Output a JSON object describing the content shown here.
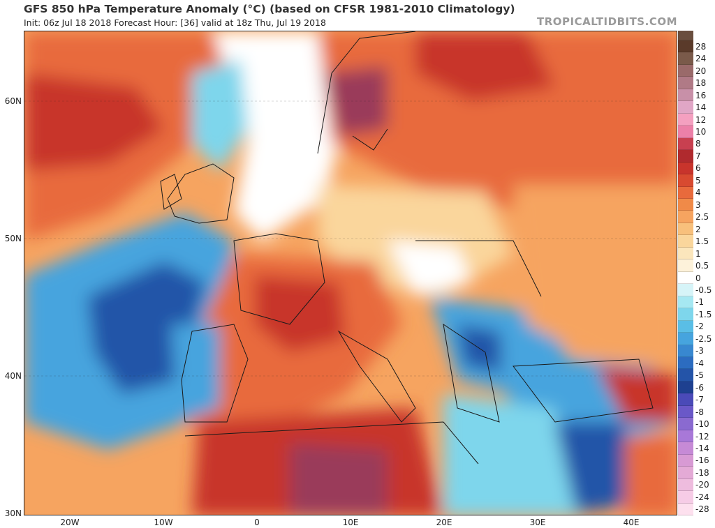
{
  "header": {
    "title": "GFS 850 hPa Temperature Anomaly (°C) (based on CFSR 1981-2010 Climatology)",
    "subtitle": "Init: 06z Jul 18 2018   Forecast Hour: [36]   valid at 18z Thu, Jul 19 2018",
    "credit": "TROPICALTIDBITS.COM"
  },
  "axes": {
    "lat_labels": [
      "60N",
      "50N",
      "40N",
      "30N"
    ],
    "lon_labels": [
      "20W",
      "10W",
      "0",
      "10E",
      "20E",
      "30E",
      "40E"
    ]
  },
  "colorbar": {
    "levels": [
      "28",
      "24",
      "20",
      "18",
      "16",
      "14",
      "12",
      "10",
      "8",
      "7",
      "6",
      "5",
      "4",
      "3",
      "2.5",
      "2",
      "1.5",
      "1",
      "0.5",
      "0",
      "-0.5",
      "-1",
      "-1.5",
      "-2",
      "-2.5",
      "-3",
      "-4",
      "-5",
      "-6",
      "-7",
      "-8",
      "-10",
      "-12",
      "-14",
      "-16",
      "-18",
      "-20",
      "-24",
      "-28"
    ],
    "colors": [
      "#5a3a2a",
      "#7a5a4a",
      "#9a6a6a",
      "#b07a86",
      "#c890a8",
      "#e0a6c6",
      "#f4a0c0",
      "#ec80a8",
      "#c84050",
      "#b02a2e",
      "#c8342c",
      "#d84a30",
      "#e86a3c",
      "#f08a48",
      "#f6a460",
      "#f8c07c",
      "#fad69c",
      "#fbe6bc",
      "#fdf2da",
      "#ffffff",
      "#d6f4f8",
      "#a6e8f2",
      "#7ed6ec",
      "#5abee6",
      "#46a4de",
      "#3888d0",
      "#2c6cc0",
      "#2454a8",
      "#1e4090",
      "#4a4ab8",
      "#6a58c8",
      "#8a6ad0",
      "#a878d8",
      "#c68ad6",
      "#d89ad4",
      "#e4aad6",
      "#eebcde",
      "#f6cce6",
      "#fde0ee"
    ],
    "top_color": "#6a4e3e"
  },
  "map": {
    "colors": {
      "ocean_west": "#fbd6a0",
      "atlantic_cold": "#46a4de",
      "deep_cold": "#2454a8",
      "cool": "#7ed6ec",
      "neutral": "#ffffff",
      "warm": "#f6a460",
      "hot": "#e86a3c",
      "very_hot": "#c8342c",
      "extreme": "#9a3a5a",
      "mild": "#fad69c"
    }
  }
}
